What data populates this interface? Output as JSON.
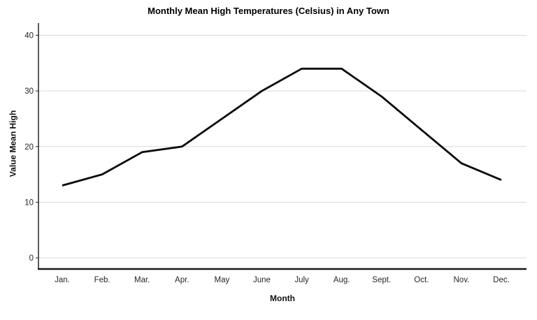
{
  "chart_data": {
    "type": "line",
    "title": "Monthly Mean High Temperatures (Celsius) in Any Town",
    "xlabel": "Month",
    "ylabel": "Value Mean High",
    "categories": [
      "Jan.",
      "Feb.",
      "Mar.",
      "Apr.",
      "May",
      "June",
      "July",
      "Aug.",
      "Sept.",
      "Oct.",
      "Nov.",
      "Dec."
    ],
    "values": [
      13,
      15,
      19,
      20,
      25,
      30,
      34,
      34,
      29,
      23,
      17,
      14
    ],
    "yticks": [
      0,
      10,
      20,
      30,
      40
    ],
    "ylim": [
      -2,
      42.2
    ],
    "grid": true,
    "legend": "none",
    "line_color": "#0a0a0a",
    "grid_color": "#d9d9d9",
    "axis_color": "#262626",
    "tick_label_color": "#262626"
  }
}
